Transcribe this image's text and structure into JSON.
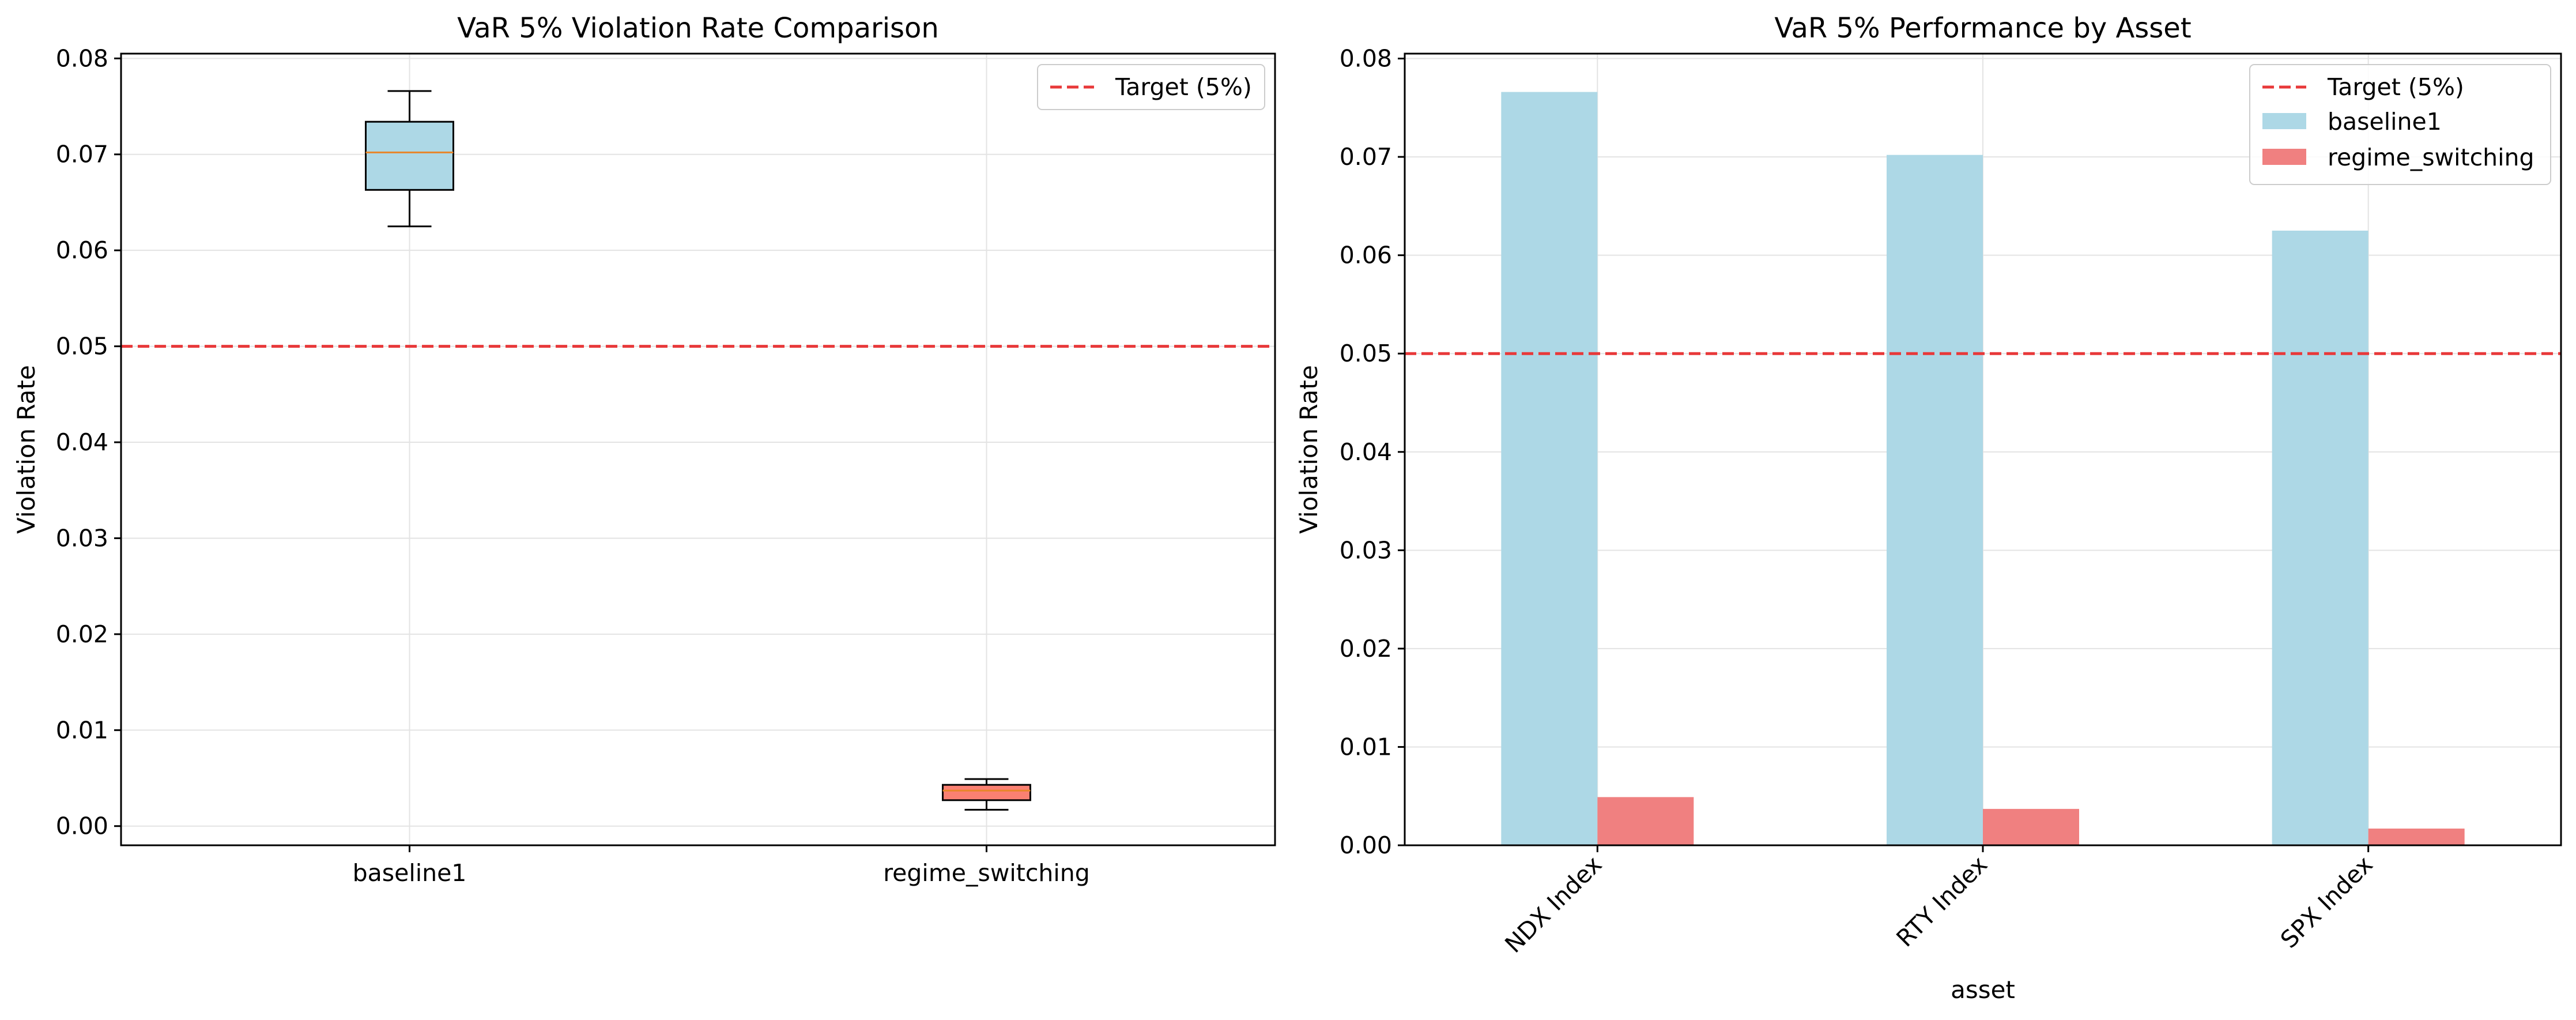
{
  "chart_data": [
    {
      "type": "box",
      "title": "VaR 5% Violation Rate Comparison",
      "xlabel": "",
      "ylabel": "Violation Rate",
      "ylim": [
        -0.002,
        0.0805
      ],
      "yticks": [
        0.0,
        0.01,
        0.02,
        0.03,
        0.04,
        0.05,
        0.06,
        0.07,
        0.08
      ],
      "ytick_labels": [
        "0.00",
        "0.01",
        "0.02",
        "0.03",
        "0.04",
        "0.05",
        "0.06",
        "0.07",
        "0.08"
      ],
      "grid": true,
      "legend": {
        "placement": "upper-right",
        "entries": [
          "Target (5%)"
        ]
      },
      "target_line": {
        "label": "Target (5%)",
        "value": 0.05,
        "color": "#e8393a",
        "style": "dashed"
      },
      "categories": [
        "baseline1",
        "regime_switching"
      ],
      "boxes": [
        {
          "name": "baseline1",
          "min": 0.0625,
          "q1": 0.0663,
          "median": 0.0702,
          "q3": 0.0734,
          "max": 0.0766,
          "color": "#add8e6"
        },
        {
          "name": "regime_switching",
          "min": 0.0017,
          "q1": 0.0027,
          "median": 0.0037,
          "q3": 0.0043,
          "max": 0.0049,
          "color": "#fa8072"
        }
      ],
      "median_color": "#e8862a"
    },
    {
      "type": "bar",
      "title": "VaR 5% Performance by Asset",
      "xlabel": "asset",
      "ylabel": "Violation Rate",
      "ylim": [
        0,
        0.0805
      ],
      "yticks": [
        0.0,
        0.01,
        0.02,
        0.03,
        0.04,
        0.05,
        0.06,
        0.07,
        0.08
      ],
      "ytick_labels": [
        "0.00",
        "0.01",
        "0.02",
        "0.03",
        "0.04",
        "0.05",
        "0.06",
        "0.07",
        "0.08"
      ],
      "grid": true,
      "legend": {
        "placement": "upper-right",
        "entries": [
          "Target (5%)",
          "baseline1",
          "regime_switching"
        ]
      },
      "target_line": {
        "label": "Target (5%)",
        "value": 0.05,
        "color": "#e8393a",
        "style": "dashed"
      },
      "categories": [
        "NDX Index",
        "RTY Index",
        "SPX Index"
      ],
      "xtick_rotation": 45,
      "series": [
        {
          "name": "baseline1",
          "values": [
            0.0766,
            0.0702,
            0.0625
          ],
          "color": "#add8e6"
        },
        {
          "name": "regime_switching",
          "values": [
            0.0049,
            0.0037,
            0.0017
          ],
          "color": "#f08080"
        }
      ]
    }
  ]
}
